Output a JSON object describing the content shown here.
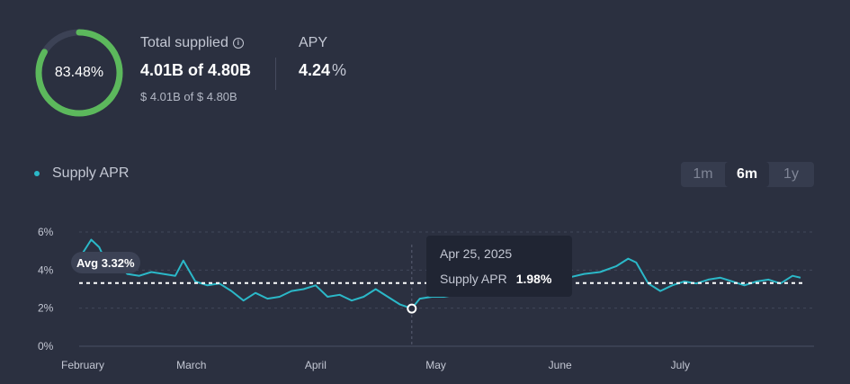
{
  "summary": {
    "utilization": "83.48%",
    "utilization_value": 0.8348,
    "total_supplied_label": "Total supplied",
    "total_supplied_value": "4.01B of 4.80B",
    "total_supplied_usd": "$ 4.01B of $ 4.80B",
    "apy_label": "APY",
    "apy_value": "4.24",
    "apy_unit": "%"
  },
  "colors": {
    "accent": "#2bb8c8",
    "gauge_fill": "#5cb85c",
    "gauge_track": "#3c4255",
    "background": "#2b3040"
  },
  "icons": {
    "info": "info-icon",
    "legend": "legend-dot"
  },
  "range_tabs": [
    {
      "label": "1m",
      "active": false
    },
    {
      "label": "6m",
      "active": true
    },
    {
      "label": "1y",
      "active": false
    }
  ],
  "tooltip": {
    "date": "Apr 25, 2025",
    "series_label": "Supply APR",
    "value": "1.98%"
  },
  "chart_data": {
    "type": "line",
    "legend": "Supply APR",
    "xlabel": "",
    "ylabel": "",
    "ylim": [
      0,
      6
    ],
    "yticks": [
      "6%",
      "4%",
      "2%",
      "0%"
    ],
    "xticks": [
      "February",
      "March",
      "April",
      "May",
      "June",
      "July"
    ],
    "x_range": [
      "2025-02-01",
      "2025-07-31"
    ],
    "grid": true,
    "average": {
      "label": "Avg 3.32%",
      "value": 3.32
    },
    "highlight": {
      "date": "2025-04-25",
      "value": 1.98
    },
    "series": [
      {
        "x": [
          "2025-02-01",
          "2025-02-04",
          "2025-02-06",
          "2025-02-08",
          "2025-02-10",
          "2025-02-13",
          "2025-02-16",
          "2025-02-19",
          "2025-02-22",
          "2025-02-25",
          "2025-02-27",
          "2025-03-02",
          "2025-03-05",
          "2025-03-08",
          "2025-03-11",
          "2025-03-14",
          "2025-03-17",
          "2025-03-20",
          "2025-03-23",
          "2025-03-26",
          "2025-03-29",
          "2025-04-01",
          "2025-04-04",
          "2025-04-07",
          "2025-04-10",
          "2025-04-13",
          "2025-04-16",
          "2025-04-19",
          "2025-04-22",
          "2025-04-25",
          "2025-04-27",
          "2025-04-30",
          "2025-05-03",
          "2025-05-06",
          "2025-05-10",
          "2025-05-14",
          "2025-05-18",
          "2025-05-22",
          "2025-05-26",
          "2025-05-30",
          "2025-06-03",
          "2025-06-07",
          "2025-06-11",
          "2025-06-15",
          "2025-06-18",
          "2025-06-20",
          "2025-06-23",
          "2025-06-26",
          "2025-06-29",
          "2025-07-02",
          "2025-07-05",
          "2025-07-08",
          "2025-07-11",
          "2025-07-14",
          "2025-07-17",
          "2025-07-20",
          "2025-07-23",
          "2025-07-26",
          "2025-07-29",
          "2025-07-31"
        ],
        "values": [
          4.6,
          5.6,
          5.2,
          4.3,
          4.5,
          3.8,
          3.7,
          3.9,
          3.8,
          3.7,
          4.5,
          3.4,
          3.2,
          3.3,
          2.9,
          2.4,
          2.8,
          2.5,
          2.6,
          2.9,
          3.0,
          3.2,
          2.6,
          2.7,
          2.4,
          2.6,
          3.0,
          2.6,
          2.2,
          1.98,
          2.5,
          2.6,
          2.6,
          2.7,
          3.0,
          3.2,
          3.3,
          3.1,
          3.4,
          3.7,
          3.6,
          3.8,
          3.9,
          4.2,
          4.6,
          4.4,
          3.3,
          2.9,
          3.2,
          3.4,
          3.3,
          3.5,
          3.6,
          3.4,
          3.2,
          3.4,
          3.5,
          3.3,
          3.7,
          3.6
        ]
      }
    ]
  }
}
